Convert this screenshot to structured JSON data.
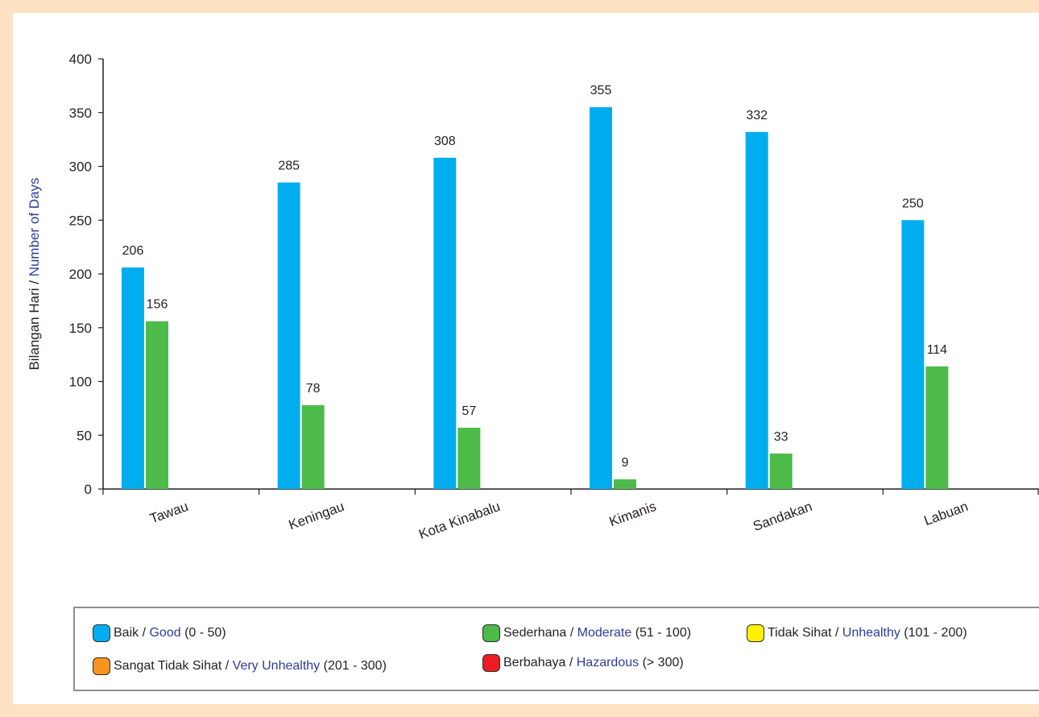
{
  "chart_data": {
    "type": "bar",
    "ylabel": {
      "ms": "Bilangan Hari",
      "sep": " / ",
      "en": "Number of Days"
    },
    "ylim": [
      0,
      400
    ],
    "yticks": [
      0,
      50,
      100,
      150,
      200,
      250,
      300,
      350,
      400
    ],
    "categories": [
      "Tawau",
      "Keningau",
      "Kota Kinabalu",
      "Kimanis",
      "Sandakan",
      "Labuan"
    ],
    "series": [
      {
        "name": "Baik / Good (0 - 50)",
        "color": "#00aeef",
        "values": [
          206,
          285,
          308,
          355,
          332,
          250
        ]
      },
      {
        "name": "Sederhana / Moderate (51 - 100)",
        "color": "#4dbb4a",
        "values": [
          156,
          78,
          57,
          9,
          33,
          114
        ]
      }
    ],
    "grid": false,
    "legend_placement": "bottom"
  },
  "legend": [
    {
      "ms": "Baik",
      "en": "Good",
      "range": "(0 - 50)",
      "color": "#00aeef"
    },
    {
      "ms": "Sederhana",
      "en": "Moderate",
      "range": "(51 - 100)",
      "color": "#4dbb4a"
    },
    {
      "ms": "Tidak Sihat",
      "en": "Unhealthy",
      "range": "(101 - 200)",
      "color": "#fff200"
    },
    {
      "ms": "Sangat Tidak Sihat",
      "en": "Very Unhealthy",
      "range": "(201 - 300)",
      "color": "#f7941d"
    },
    {
      "ms": "Berbahaya",
      "en": "Hazardous",
      "range": "(> 300)",
      "color": "#ed1c24"
    }
  ]
}
